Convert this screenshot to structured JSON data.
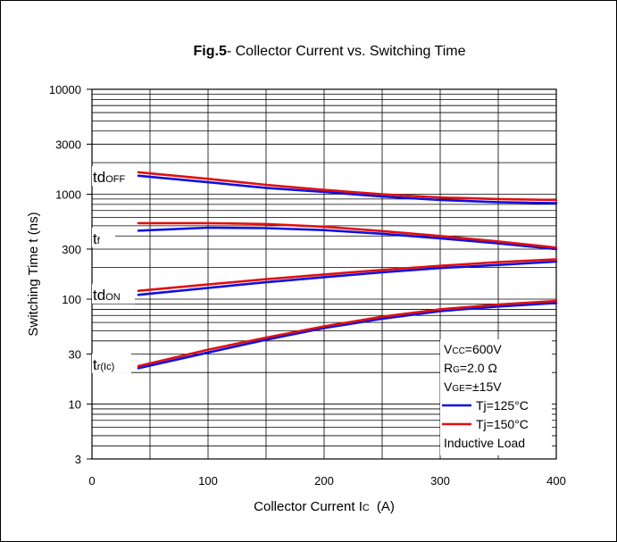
{
  "chart_data": {
    "type": "line",
    "title_bold": "Fig.5",
    "title_rest": "- Collector Current vs. Switching Time",
    "xlabel_main": "Collector Current I",
    "xlabel_sub": "C",
    "xlabel_unit": "(A)",
    "ylabel": "Switching Time t  (ns)",
    "x_scale": "linear",
    "y_scale": "log",
    "xlim": [
      0,
      400
    ],
    "ylim": [
      3,
      10000
    ],
    "x_ticks": [
      "0",
      "100",
      "200",
      "300",
      "400"
    ],
    "y_ticks": [
      "10000",
      "3000",
      "1000",
      "300",
      "100",
      "30",
      "10",
      "3"
    ],
    "grid": true,
    "colors": {
      "tj125": "#1010e0",
      "tj150": "#e01010"
    },
    "curves": [
      {
        "label_main": "td",
        "label_sub": "OFF",
        "series": [
          {
            "name": "Tj=125°C",
            "x": [
              40,
              100,
              150,
              200,
              250,
              300,
              350,
              400
            ],
            "y": [
              1500,
              1300,
              1150,
              1050,
              950,
              880,
              840,
              820
            ]
          },
          {
            "name": "Tj=150°C",
            "x": [
              40,
              100,
              150,
              200,
              250,
              300,
              350,
              400
            ],
            "y": [
              1620,
              1400,
              1230,
              1100,
              1000,
              930,
              900,
              880
            ]
          }
        ]
      },
      {
        "label_main": "t",
        "label_sub": "f",
        "series": [
          {
            "name": "Tj=125°C",
            "x": [
              40,
              100,
              150,
              200,
              250,
              300,
              350,
              400
            ],
            "y": [
              450,
              480,
              475,
              455,
              420,
              380,
              340,
              300
            ]
          },
          {
            "name": "Tj=150°C",
            "x": [
              40,
              100,
              150,
              200,
              250,
              300,
              350,
              400
            ],
            "y": [
              530,
              530,
              520,
              490,
              445,
              400,
              355,
              310
            ]
          }
        ]
      },
      {
        "label_main": "td",
        "label_sub": "ON",
        "series": [
          {
            "name": "Tj=125°C",
            "x": [
              40,
              100,
              150,
              200,
              250,
              300,
              350,
              400
            ],
            "y": [
              110,
              128,
              145,
              162,
              180,
              198,
              212,
              228
            ]
          },
          {
            "name": "Tj=150°C",
            "x": [
              40,
              100,
              150,
              200,
              250,
              300,
              350,
              400
            ],
            "y": [
              120,
              138,
              155,
              172,
              190,
              208,
              225,
              240
            ]
          }
        ]
      },
      {
        "label_main": "t",
        "label_sub": "r(Ic)",
        "series": [
          {
            "name": "Tj=125°C",
            "x": [
              40,
              100,
              150,
              200,
              250,
              300,
              350,
              400
            ],
            "y": [
              22,
              31,
              41,
              53,
              65,
              77,
              85,
              92
            ]
          },
          {
            "name": "Tj=150°C",
            "x": [
              40,
              100,
              150,
              200,
              250,
              300,
              350,
              400
            ],
            "y": [
              23,
              33,
              43,
              55,
              68,
              80,
              89,
              96
            ]
          }
        ]
      }
    ],
    "legend": {
      "placement": "bottom-right",
      "conditions": [
        {
          "main": "V",
          "sub": "CC",
          "rest": "=600V"
        },
        {
          "main": "R",
          "sub": "G",
          "rest": "=2.0 Ω"
        },
        {
          "main": "V",
          "sub": "GE",
          "rest": "=±15V"
        }
      ],
      "entries": [
        {
          "name": "Tj=125°C",
          "color": "#1010e0"
        },
        {
          "name": "Tj=150°C",
          "color": "#e01010"
        }
      ],
      "note": "Inductive Load"
    }
  }
}
